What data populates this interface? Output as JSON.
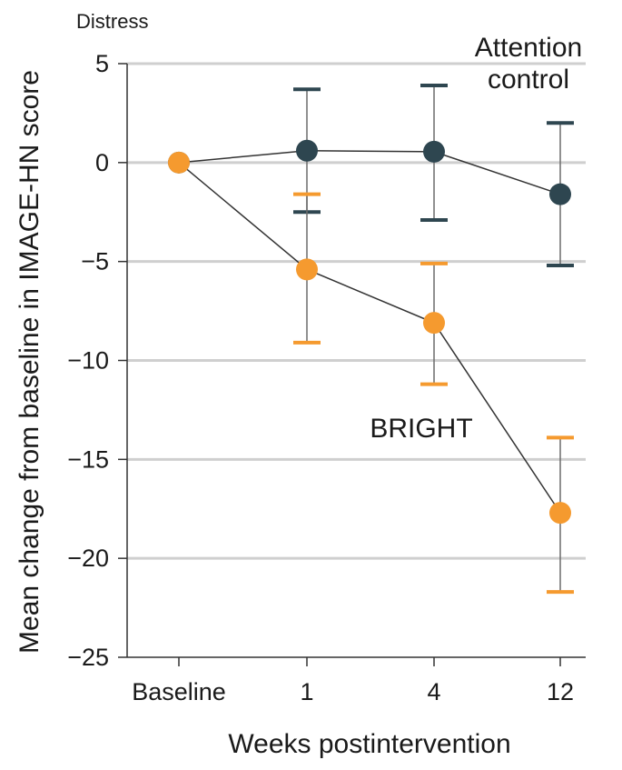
{
  "chart_data": {
    "type": "line",
    "title": "Distress",
    "xlabel": "Weeks postintervention",
    "ylabel": "Mean change from baseline in IMAGE-HN score",
    "categories": [
      "Baseline",
      "1",
      "4",
      "12"
    ],
    "yticks": [
      5,
      0,
      -5,
      -10,
      -15,
      -20,
      -25
    ],
    "ytick_labels": [
      "5",
      "0",
      "−5",
      "−10",
      "−15",
      "−20",
      "−25"
    ],
    "ylim": [
      -25,
      5
    ],
    "grid": "horizontal",
    "series": [
      {
        "name": "Attention control",
        "name_lines": [
          "Attention",
          "control"
        ],
        "color": "#2e4650",
        "values": [
          0,
          0.6,
          0.55,
          -1.6
        ],
        "error_low": [
          null,
          -2.5,
          -2.9,
          -5.2
        ],
        "error_high": [
          null,
          3.7,
          3.9,
          2.0
        ]
      },
      {
        "name": "BRIGHT",
        "color": "#f59a2f",
        "values": [
          0,
          -5.4,
          -8.1,
          -17.7
        ],
        "error_low": [
          null,
          -9.1,
          -11.2,
          -21.7
        ],
        "error_high": [
          null,
          -1.6,
          -5.1,
          -13.9
        ]
      }
    ]
  }
}
